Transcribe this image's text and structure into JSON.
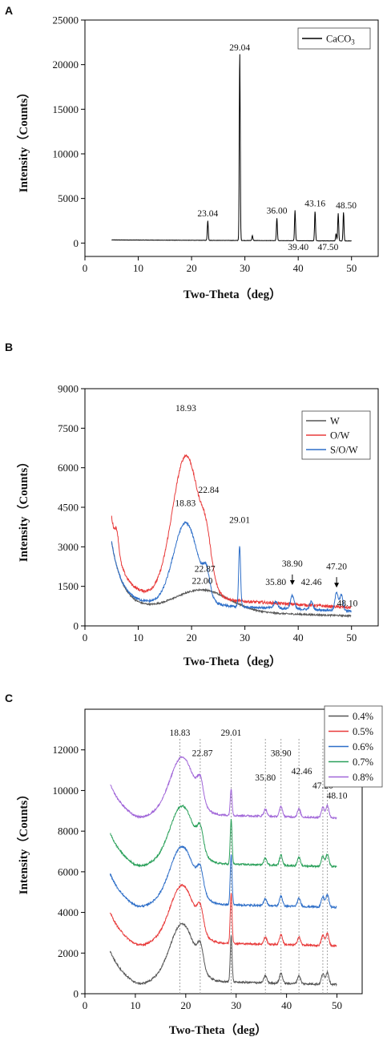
{
  "chart_data": [
    {
      "panel": "A",
      "type": "line",
      "xlabel": "Two-Theta（deg）",
      "ylabel": "Intensity（Counts）",
      "xlim": [
        0,
        55
      ],
      "ylim": [
        -1500,
        25000
      ],
      "xticks": [
        0,
        10,
        20,
        30,
        40,
        50
      ],
      "yticks": [
        0,
        5000,
        10000,
        15000,
        20000,
        25000
      ],
      "legend_position": "top-right",
      "series": [
        {
          "name": "CaCO3",
          "color": "#000000",
          "baseline": 350,
          "peaks": [
            [
              23.04,
              2200
            ],
            [
              29.04,
              21000
            ],
            [
              31.4,
              550
            ],
            [
              36.0,
              2500
            ],
            [
              39.4,
              3400
            ],
            [
              43.16,
              3300
            ],
            [
              47.1,
              800
            ],
            [
              47.5,
              3100
            ],
            [
              48.5,
              3200
            ]
          ]
        }
      ],
      "annotations": [
        {
          "text": "29.04",
          "x": 29.04,
          "y": 21600
        },
        {
          "text": "23.04",
          "x": 23.04,
          "y": 3000
        },
        {
          "text": "36.00",
          "x": 36.0,
          "y": 3300
        },
        {
          "text": "43.16",
          "x": 43.16,
          "y": 4100
        },
        {
          "text": "48.50",
          "x": 49.0,
          "y": 3900
        },
        {
          "text": "39.40",
          "x": 40.0,
          "y": -800
        },
        {
          "text": "47.50",
          "x": 45.6,
          "y": -800
        }
      ]
    },
    {
      "panel": "B",
      "type": "line",
      "xlabel": "Two-Theta（deg）",
      "ylabel": "Intensity（Counts）",
      "xlim": [
        0,
        55
      ],
      "ylim": [
        0,
        9000
      ],
      "xticks": [
        0,
        10,
        20,
        30,
        40,
        50
      ],
      "yticks": [
        0,
        1500,
        3000,
        4500,
        6000,
        7500,
        9000
      ],
      "legend_position": "top-right",
      "series": [
        {
          "name": "W",
          "color": "#555555"
        },
        {
          "name": "O/W",
          "color": "#e83a3a"
        },
        {
          "name": "S/O/W",
          "color": "#2d6ec8"
        }
      ],
      "annotations": [
        {
          "text": "18.93",
          "x": 18.93,
          "y": 8150
        },
        {
          "text": "22.84",
          "x": 23.2,
          "y": 5050
        },
        {
          "text": "18.83",
          "x": 18.83,
          "y": 4550
        },
        {
          "text": "22.87",
          "x": 22.5,
          "y": 2050
        },
        {
          "text": "22.00",
          "x": 22.0,
          "y": 1600
        },
        {
          "text": "29.01",
          "x": 29.01,
          "y": 3900
        },
        {
          "text": "35.80",
          "x": 35.8,
          "y": 1550
        },
        {
          "text": "38.90",
          "x": 38.9,
          "y": 2250
        },
        {
          "text": "42.46",
          "x": 42.46,
          "y": 1550
        },
        {
          "text": "47.20",
          "x": 47.2,
          "y": 2150
        },
        {
          "text": "48.10",
          "x": 49.2,
          "y": 750
        }
      ]
    },
    {
      "panel": "C",
      "type": "line",
      "xlabel": "Two-Theta（deg）",
      "ylabel": "Intensity（Counts）",
      "xlim": [
        0,
        55
      ],
      "ylim": [
        0,
        14000
      ],
      "xticks": [
        0,
        10,
        20,
        30,
        40,
        50
      ],
      "yticks": [
        0,
        2000,
        4000,
        6000,
        8000,
        10000,
        12000
      ],
      "legend_position": "top-right",
      "series": [
        {
          "name": "0.4%",
          "color": "#555555",
          "offset": 0
        },
        {
          "name": "0.5%",
          "color": "#e83a3a",
          "offset": 1900
        },
        {
          "name": "0.6%",
          "color": "#2d6ec8",
          "offset": 3800
        },
        {
          "name": "0.7%",
          "color": "#2aa05a",
          "offset": 5800
        },
        {
          "name": "0.8%",
          "color": "#a065d8",
          "offset": 8200
        }
      ],
      "reference_lines_x": [
        18.83,
        22.87,
        29.01,
        35.8,
        38.9,
        42.46,
        47.2,
        48.1
      ],
      "annotations": [
        {
          "text": "18.83",
          "x": 18.83,
          "y": 12700
        },
        {
          "text": "22.87",
          "x": 23.3,
          "y": 11700
        },
        {
          "text": "29.01",
          "x": 29.01,
          "y": 12700
        },
        {
          "text": "35.80",
          "x": 35.8,
          "y": 10500
        },
        {
          "text": "38.90",
          "x": 38.9,
          "y": 11700
        },
        {
          "text": "42.46",
          "x": 43.0,
          "y": 10800
        },
        {
          "text": "47.20",
          "x": 47.2,
          "y": 10100
        },
        {
          "text": "48.10",
          "x": 50.0,
          "y": 9600
        }
      ]
    }
  ]
}
